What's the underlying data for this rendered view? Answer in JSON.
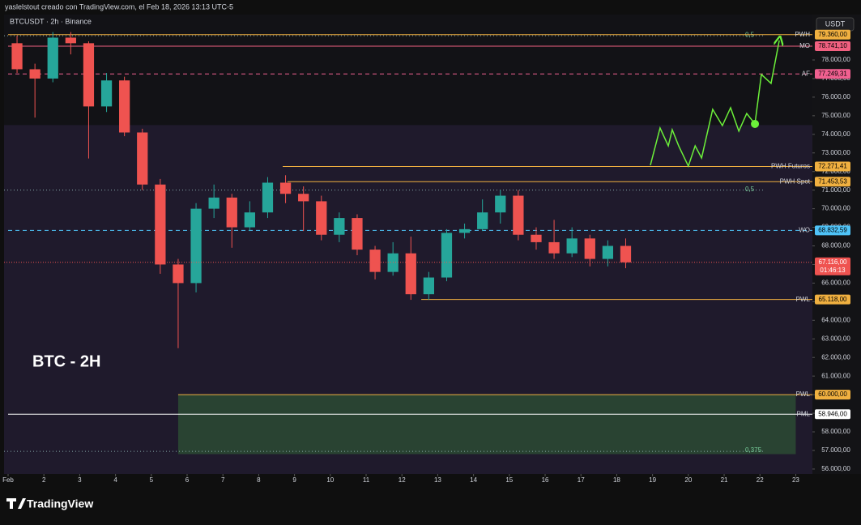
{
  "header": "yaslelstout creado con TradingView.com, el Feb 18, 2026 13:13 UTC-5",
  "footer": "TradingView",
  "chart_data": {
    "type": "candlestick",
    "title": "BTCUSDT · 2h · Binance",
    "annotation": "BTC - 2H",
    "currency": "USDT",
    "up_color": "#26a69a",
    "down_color": "#ef5350",
    "x": [
      1.25,
      1.75,
      2.25,
      2.75,
      3.25,
      3.75,
      4.25,
      4.75,
      5.25,
      5.75,
      6.25,
      6.75,
      7.25,
      7.75,
      8.25,
      8.75,
      9.25,
      9.75,
      10.25,
      10.75,
      11.25,
      11.75,
      12.25,
      12.75,
      13.25,
      13.75,
      14.25,
      14.75,
      15.25,
      15.75,
      16.25,
      16.75,
      17.25,
      17.75,
      18.25
    ],
    "open": [
      78900,
      77500,
      77000,
      79200,
      78900,
      75500,
      76900,
      74100,
      71300,
      67000,
      66000,
      70000,
      70600,
      69000,
      69800,
      71400,
      70800,
      70400,
      68600,
      69500,
      67800,
      66600,
      67600,
      65400,
      66300,
      68700,
      68900,
      69800,
      70700,
      68600,
      68200,
      67600,
      68400,
      67300,
      68000
    ],
    "high": [
      79300,
      77800,
      79500,
      79500,
      79000,
      77300,
      77100,
      74300,
      71600,
      67300,
      70300,
      71300,
      70800,
      70400,
      71700,
      71800,
      71200,
      70700,
      69800,
      69700,
      68000,
      68200,
      68500,
      66600,
      68900,
      69200,
      70500,
      71000,
      71000,
      69000,
      69400,
      69000,
      68600,
      68300,
      68400
    ],
    "low": [
      77300,
      74900,
      76800,
      78300,
      72700,
      75200,
      73900,
      71000,
      66500,
      62500,
      65500,
      69500,
      67900,
      68800,
      69500,
      70300,
      68800,
      68300,
      68200,
      67500,
      66200,
      66400,
      65100,
      65100,
      66100,
      68400,
      68800,
      69200,
      68300,
      67800,
      67300,
      67400,
      66900,
      66900,
      66800
    ],
    "close": [
      77500,
      77000,
      79200,
      78900,
      75500,
      76900,
      74100,
      71300,
      67000,
      66000,
      70000,
      70600,
      69000,
      69800,
      71400,
      70800,
      70400,
      68600,
      69500,
      67800,
      66600,
      67600,
      65400,
      66300,
      68700,
      68900,
      69800,
      70700,
      68600,
      68200,
      67600,
      68400,
      67300,
      68000,
      67116
    ],
    "last_label": "67.116,00",
    "countdown": "01:46:13",
    "xlim": [
      0.887,
      23.465
    ],
    "ylim": [
      55735,
      80440
    ],
    "xticks": [
      {
        "value": 1,
        "label": "Feb"
      },
      2,
      3,
      4,
      5,
      6,
      7,
      8,
      9,
      10,
      11,
      12,
      13,
      14,
      15,
      16,
      17,
      18,
      19,
      20,
      21,
      22,
      23
    ],
    "yticks": [
      {
        "value": 56000,
        "label": "56.000,00"
      },
      {
        "value": 57000,
        "label": "57.000,00"
      },
      {
        "value": 58000,
        "label": "58.000,00"
      },
      {
        "value": 59000,
        "label": "59.000,00"
      },
      {
        "value": 60000,
        "label": "60.000,00"
      },
      {
        "value": 61000,
        "label": "61.000,00"
      },
      {
        "value": 62000,
        "label": "62.000,00"
      },
      {
        "value": 63000,
        "label": "63.000,00"
      },
      {
        "value": 64000,
        "label": "64.000,00"
      },
      {
        "value": 65000,
        "label": "65.000,00"
      },
      {
        "value": 66000,
        "label": "66.000,00"
      },
      {
        "value": 67000,
        "label": "67.000,00"
      },
      {
        "value": 68000,
        "label": "68.000,00"
      },
      {
        "value": 69000,
        "label": "69.000,00"
      },
      {
        "value": 70000,
        "label": "70.000,00"
      },
      {
        "value": 71000,
        "label": "71.000,00"
      },
      {
        "value": 72000,
        "label": "72.000,00"
      },
      {
        "value": 73000,
        "label": "73.000,00"
      },
      {
        "value": 74000,
        "label": "74.000,00"
      },
      {
        "value": 75000,
        "label": "75.000,00"
      },
      {
        "value": 76000,
        "label": "76.000,00"
      },
      {
        "value": 77000,
        "label": "77.000,00"
      },
      {
        "value": 78000,
        "label": "78.000,00"
      }
    ],
    "levels": [
      {
        "name": "PWH",
        "value": 79360,
        "value_label": "79.360,00",
        "color": "#f0b040",
        "from": 1,
        "style": "solid"
      },
      {
        "name": "MO",
        "value": 78741.1,
        "value_label": "78.741,10",
        "color": "#f06080",
        "from": 1,
        "style": "solid"
      },
      {
        "name": "AF",
        "value": 77249.31,
        "value_label": "77.249,31",
        "color": "#f06090",
        "from": 1,
        "style": "dashed"
      },
      {
        "name": "PWH Futuros",
        "value": 72271.41,
        "value_label": "72.271,41",
        "color": "#f0b040",
        "from": 8.67,
        "style": "solid"
      },
      {
        "name": "PWH Spot",
        "value": 71453.53,
        "value_label": "71.453,53",
        "color": "#f0b040",
        "from": 8.8,
        "style": "solid"
      },
      {
        "name": "WO",
        "value": 68832.59,
        "value_label": "68.832,59",
        "color": "#4fc3f7",
        "from": 1,
        "style": "dashed"
      },
      {
        "name": "PWL",
        "value": 65118,
        "value_label": "65.118,00",
        "color": "#f0b040",
        "from": 12.54,
        "style": "solid"
      },
      {
        "name": "PWL",
        "value": 60000,
        "value_label": "60.000,00",
        "color": "#f0b040",
        "from": 5.75,
        "style": "solid"
      },
      {
        "name": "PML",
        "value": 58946,
        "value_label": "58.946,00",
        "color": "#ffffff",
        "from": 1,
        "style": "solid"
      }
    ],
    "fib": [
      {
        "label": "0,5",
        "value": 79300
      },
      {
        "label": "0,5",
        "value": 71000
      },
      {
        "label": "0,375",
        "value": 56950
      }
    ],
    "zone": {
      "x": [
        5.75,
        23
      ],
      "y": [
        56800,
        60000
      ],
      "color": "#2e5234"
    },
    "range_top": 74500,
    "projection": {
      "color": "#6cf03a",
      "x": [
        18.94,
        19.21,
        19.44,
        19.55,
        19.73,
        20,
        20.19,
        20.37,
        20.68,
        20.95,
        21.18,
        21.41,
        21.63,
        21.86,
        22.04,
        22.31,
        22.54
      ],
      "y": [
        72340,
        74340,
        73380,
        74250,
        73380,
        72290,
        73380,
        72730,
        75340,
        74470,
        75430,
        74170,
        75120,
        74560,
        77220,
        76740,
        79050
      ]
    }
  }
}
